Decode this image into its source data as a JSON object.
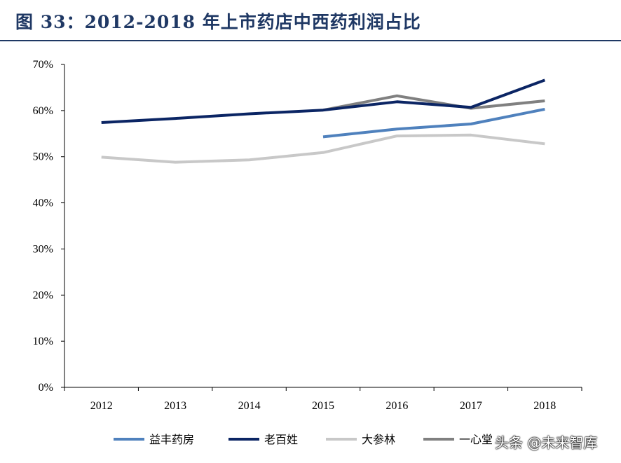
{
  "header": {
    "title": "图 33：2012-2018 年上市药店中西药利润占比"
  },
  "watermark": "头条 @未来智库",
  "chart_data": {
    "type": "line",
    "title": "",
    "xlabel": "",
    "ylabel": "",
    "x": [
      "2012",
      "2013",
      "2014",
      "2015",
      "2016",
      "2017",
      "2018"
    ],
    "ylim": [
      0,
      70
    ],
    "yticks": [
      "0%",
      "10%",
      "20%",
      "30%",
      "40%",
      "50%",
      "60%",
      "70%"
    ],
    "grid": false,
    "legend_position": "bottom",
    "series": [
      {
        "name": "益丰药房",
        "color": "#4f81bd",
        "values": [
          null,
          null,
          null,
          54.3,
          56.0,
          57.1,
          60.3
        ]
      },
      {
        "name": "老百姓",
        "color": "#0b2564",
        "values": [
          57.4,
          58.3,
          59.3,
          60.1,
          61.9,
          60.7,
          66.6
        ]
      },
      {
        "name": "大参林",
        "color": "#c8c8c8",
        "values": [
          49.9,
          48.8,
          49.3,
          50.9,
          54.5,
          54.7,
          52.8
        ]
      },
      {
        "name": "一心堂",
        "color": "#808080",
        "values": [
          null,
          null,
          null,
          60.1,
          63.2,
          60.5,
          62.1
        ]
      }
    ]
  }
}
